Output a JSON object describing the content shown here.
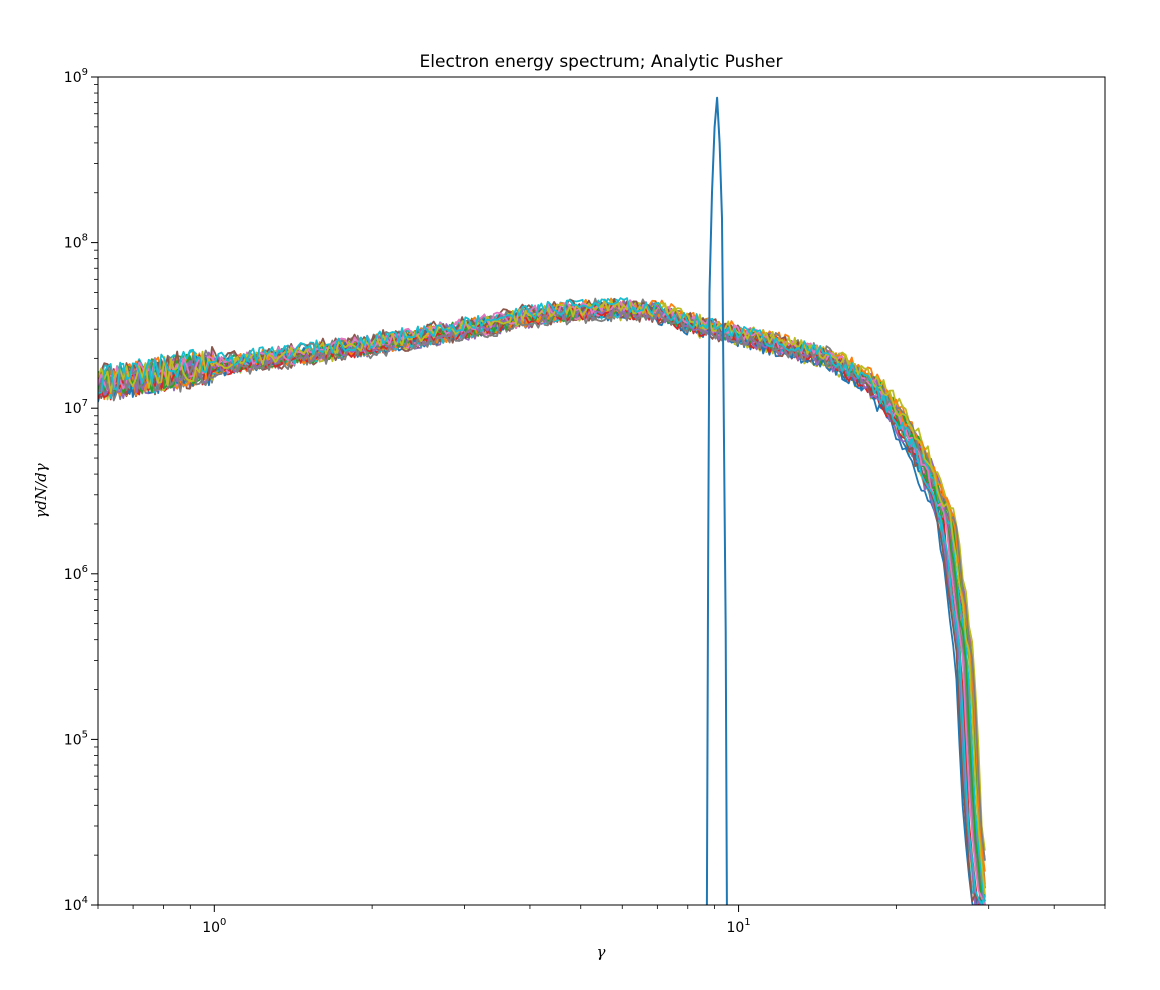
{
  "chart_data": {
    "type": "line",
    "title": "Electron energy spectrum; Analytic Pusher",
    "xlabel": "γ",
    "ylabel": "γdN/dγ",
    "xscale": "log",
    "yscale": "log",
    "xlim": [
      0.6,
      50
    ],
    "ylim": [
      10000,
      1000000000
    ],
    "grid": false,
    "x_major_ticks": [
      {
        "base": "10",
        "exp": "0",
        "value": 1
      },
      {
        "base": "10",
        "exp": "1",
        "value": 10
      }
    ],
    "y_major_ticks": [
      {
        "base": "10",
        "exp": "4",
        "value": 10000
      },
      {
        "base": "10",
        "exp": "5",
        "value": 100000
      },
      {
        "base": "10",
        "exp": "6",
        "value": 1000000
      },
      {
        "base": "10",
        "exp": "7",
        "value": 10000000
      },
      {
        "base": "10",
        "exp": "8",
        "value": 100000000
      },
      {
        "base": "10",
        "exp": "9",
        "value": 1000000000
      }
    ],
    "initial_spectrum": {
      "color": "#1f77b4",
      "x": [
        8.7,
        8.75,
        8.8,
        8.9,
        9.0,
        9.1,
        9.2,
        9.3,
        9.45,
        9.5
      ],
      "y": [
        10000,
        1400000,
        50000000,
        200000000,
        500000000,
        750000000,
        400000000,
        140000000,
        450000,
        10000
      ]
    },
    "evolved_spectra_envelope": {
      "x": [
        0.6,
        1,
        2,
        3,
        4,
        5,
        6,
        7,
        8,
        9,
        10,
        12,
        15,
        18,
        20,
        22,
        25,
        27,
        28,
        29
      ],
      "y": [
        14000000,
        18000000,
        24000000,
        30000000,
        36000000,
        39000000,
        40000000,
        38000000,
        33000000,
        30000000,
        28000000,
        24000000,
        20000000,
        14000000,
        9000000,
        5500000,
        2000000,
        300000,
        30000,
        10000
      ]
    },
    "palette": [
      "#1f77b4",
      "#ff7f0e",
      "#2ca02c",
      "#d62728",
      "#9467bd",
      "#8c564b",
      "#e377c2",
      "#7f7f7f",
      "#bcbd22",
      "#17becf"
    ],
    "series_count": 30
  }
}
